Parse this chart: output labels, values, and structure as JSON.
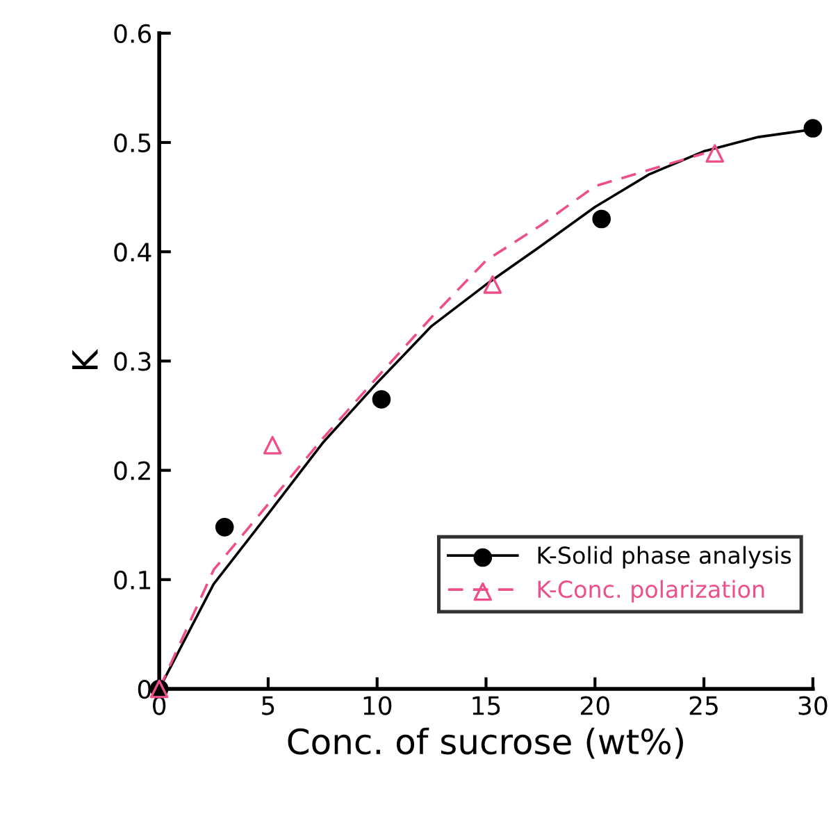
{
  "chart_data": {
    "type": "scatter",
    "xlabel": "Conc. of sucrose (wt%)",
    "ylabel": "K",
    "xlim": [
      0,
      30
    ],
    "ylim": [
      0,
      0.6
    ],
    "xticks": [
      0,
      5,
      10,
      15,
      20,
      25,
      30
    ],
    "yticks": [
      0,
      0.1,
      0.2,
      0.3,
      0.4,
      0.5,
      0.6
    ],
    "grid": false,
    "legend": "bottom right",
    "series": [
      {
        "name": "K-Solid phase analysis",
        "color": "#000000",
        "marker": "circle",
        "x": [
          0,
          3,
          10.2,
          20.3,
          30
        ],
        "values": [
          0,
          0.148,
          0.265,
          0.43,
          0.513
        ]
      },
      {
        "type": "line",
        "color": "#000000",
        "line_style": "solid",
        "marker": "none",
        "x": [
          0,
          2.5,
          5,
          7.5,
          10,
          12.5,
          15,
          17.5,
          20,
          22.5,
          25,
          27.5,
          30
        ],
        "values": [
          0,
          0.096,
          0.16,
          0.225,
          0.28,
          0.332,
          0.37,
          0.405,
          0.441,
          0.471,
          0.492,
          0.505,
          0.512
        ]
      },
      {
        "name": "K-Conc. polarization",
        "color": "#ee4f8a",
        "marker": "triangle",
        "x": [
          0,
          5.2,
          15.3,
          25.5
        ],
        "values": [
          0,
          0.223,
          0.37,
          0.49
        ]
      },
      {
        "type": "line",
        "color": "#ee4f8a",
        "line_style": "dashed",
        "marker": "none",
        "x": [
          0,
          2.5,
          5,
          7.5,
          10,
          12.5,
          15,
          17.5,
          20,
          22.5,
          25
        ],
        "values": [
          0,
          0.109,
          0.169,
          0.229,
          0.285,
          0.34,
          0.392,
          0.424,
          0.46,
          0.475,
          0.49
        ]
      }
    ]
  }
}
